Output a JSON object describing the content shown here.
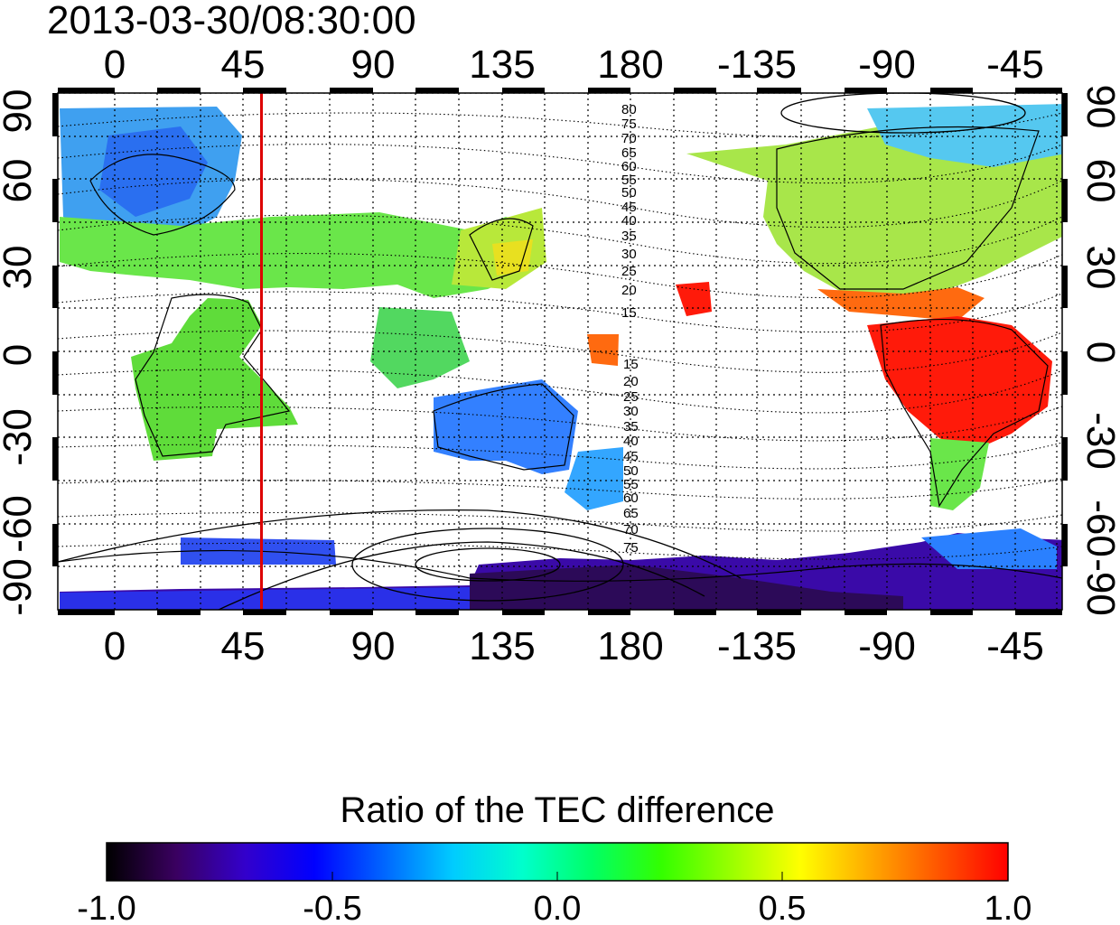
{
  "timestamp": "2013-03-30/08:30:00",
  "map": {
    "top_lon_ticks": [
      "0",
      "45",
      "90",
      "135",
      "180",
      "-135",
      "-90",
      "-45"
    ],
    "bottom_lon_ticks": [
      "0",
      "45",
      "90",
      "135",
      "180",
      "-135",
      "-90",
      "-45"
    ],
    "left_lat_ticks": [
      "90",
      "60",
      "30",
      "0",
      "-30",
      "-60",
      "-90"
    ],
    "right_lat_ticks": [
      "90",
      "60",
      "30",
      "0",
      "-30",
      "-60",
      "-90"
    ],
    "marker_line": {
      "longitude": 53,
      "color": "#dd0000"
    },
    "contour_labels_north": [
      "80",
      "75",
      "70",
      "65",
      "60",
      "55",
      "50",
      "45",
      "40",
      "35",
      "30",
      "25",
      "20",
      "15"
    ],
    "contour_labels_south": [
      "15",
      "20",
      "25",
      "30",
      "35",
      "40",
      "45",
      "50",
      "55",
      "60",
      "65",
      "70",
      "75"
    ]
  },
  "colorbar": {
    "title": "Ratio of the TEC difference",
    "tick_labels": [
      "-1.0",
      "-0.5",
      "0.0",
      "0.5",
      "1.0"
    ],
    "range": [
      -1.0,
      1.0
    ],
    "stops": [
      "#000000",
      "#3a0060",
      "#3300cc",
      "#0000ff",
      "#0066ff",
      "#00ccff",
      "#00ffcc",
      "#00ff66",
      "#33ff00",
      "#99ff00",
      "#ffff00",
      "#ffaa00",
      "#ff5500",
      "#ff0000"
    ]
  },
  "palette": {
    "red_region": "#ff1a0a",
    "antarctic": "#3a0aa8",
    "australia": "#3380ff",
    "europe": "#3fa0f0",
    "africa": "#5fdc3a",
    "north_america": "#a8e64a"
  }
}
